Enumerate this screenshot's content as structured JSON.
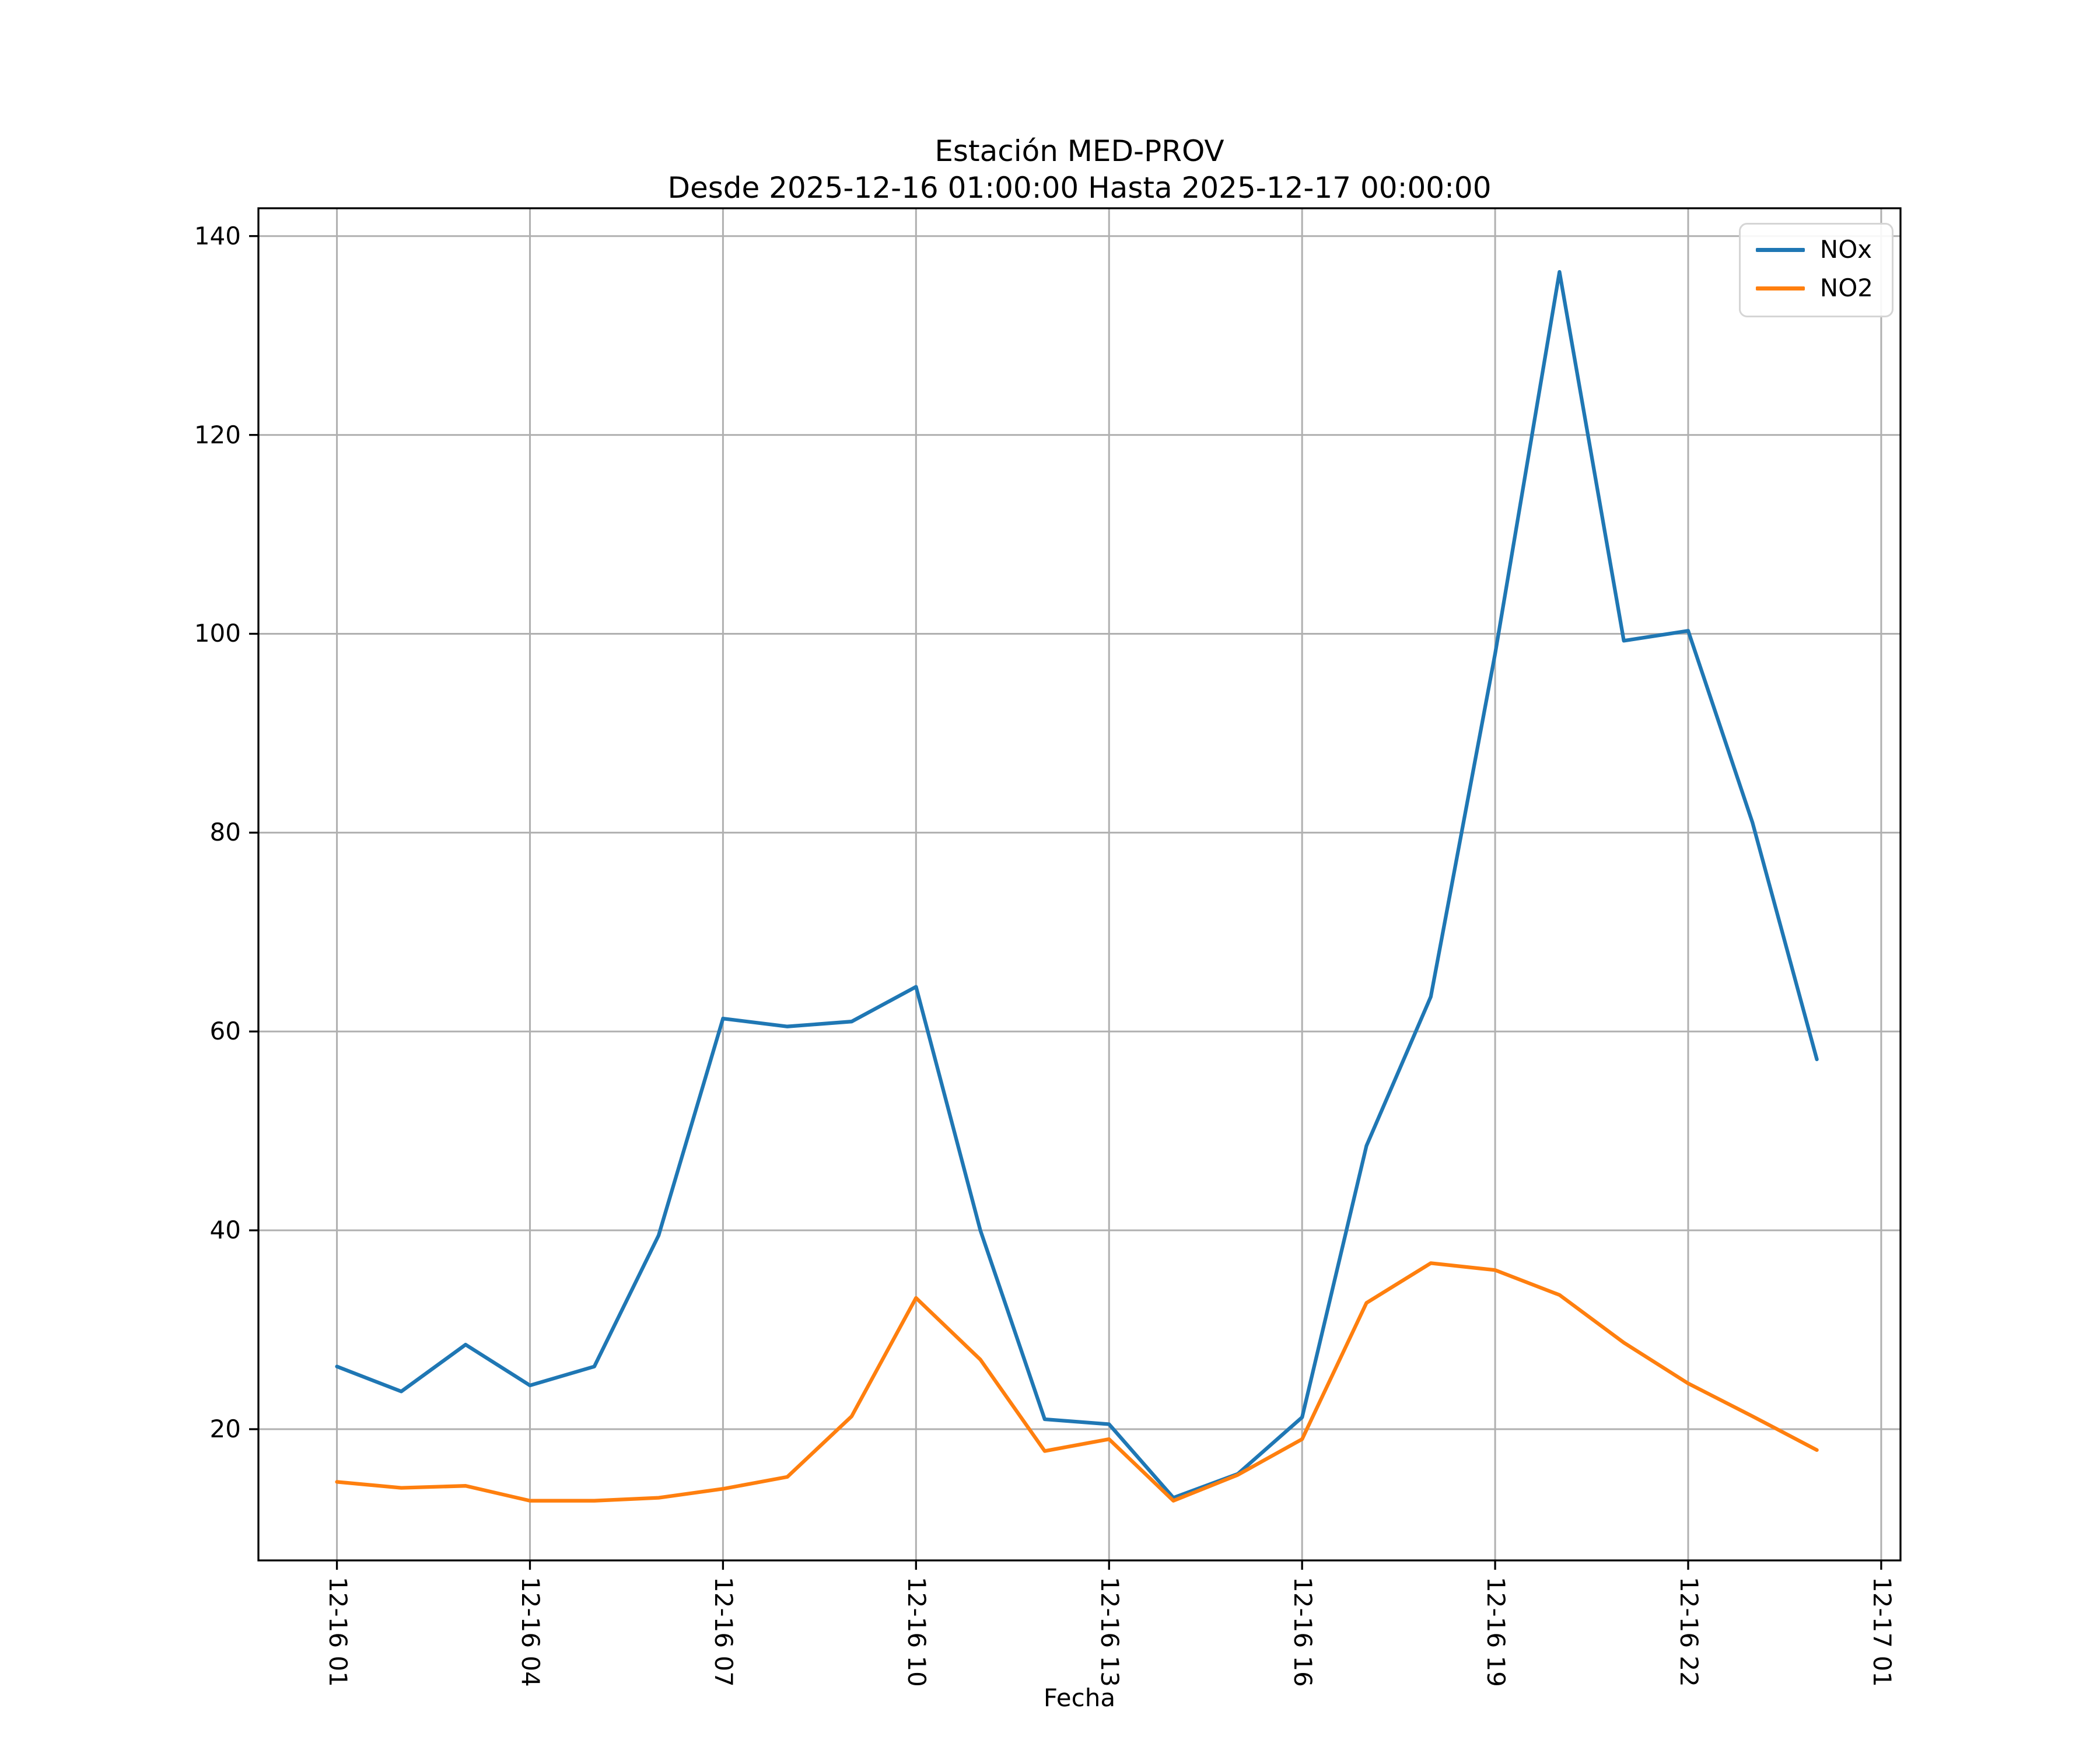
{
  "figure": {
    "title": "Estación MED-PROV",
    "subtitle": "Desde 2025-12-16 01:00:00 Hasta 2025-12-17 00:00:00",
    "xlabel": "Fecha"
  },
  "chart_data": {
    "type": "line",
    "title": "Estación MED-PROV",
    "subtitle": "Desde 2025-12-16 01:00:00 Hasta 2025-12-17 00:00:00",
    "xlabel": "Fecha",
    "ylabel": "",
    "grid": true,
    "legend_position": "upper right",
    "x_labels": [
      "2025-12-16 01:00",
      "2025-12-16 02:00",
      "2025-12-16 03:00",
      "2025-12-16 04:00",
      "2025-12-16 05:00",
      "2025-12-16 06:00",
      "2025-12-16 07:00",
      "2025-12-16 08:00",
      "2025-12-16 09:00",
      "2025-12-16 10:00",
      "2025-12-16 11:00",
      "2025-12-16 12:00",
      "2025-12-16 13:00",
      "2025-12-16 14:00",
      "2025-12-16 15:00",
      "2025-12-16 16:00",
      "2025-12-16 17:00",
      "2025-12-16 18:00",
      "2025-12-16 19:00",
      "2025-12-16 20:00",
      "2025-12-16 21:00",
      "2025-12-16 22:00",
      "2025-12-16 23:00",
      "2025-12-17 00:00"
    ],
    "series": [
      {
        "name": "NOx",
        "color": "#1f77b4",
        "values": [
          26.3,
          23.8,
          28.5,
          24.4,
          26.3,
          39.5,
          61.3,
          60.5,
          61.0,
          64.5,
          40.0,
          21.0,
          20.5,
          13.1,
          15.5,
          21.2,
          48.5,
          63.5,
          98.0,
          136.4,
          99.3,
          100.3,
          81.0,
          57.2
        ]
      },
      {
        "name": "NO2",
        "color": "#ff7f0e",
        "values": [
          14.7,
          14.1,
          14.3,
          12.8,
          12.8,
          13.1,
          14.0,
          15.2,
          21.3,
          33.2,
          27.0,
          17.8,
          19.0,
          12.8,
          15.4,
          19.0,
          32.7,
          36.7,
          36.0,
          33.5,
          28.7,
          24.6,
          21.3,
          17.9
        ]
      }
    ],
    "xticks": [
      {
        "pos": 0,
        "label": "12-16 01"
      },
      {
        "pos": 3,
        "label": "12-16 04"
      },
      {
        "pos": 6,
        "label": "12-16 07"
      },
      {
        "pos": 9,
        "label": "12-16 10"
      },
      {
        "pos": 12,
        "label": "12-16 13"
      },
      {
        "pos": 15,
        "label": "12-16 16"
      },
      {
        "pos": 18,
        "label": "12-16 19"
      },
      {
        "pos": 21,
        "label": "12-16 22"
      },
      {
        "pos": 24,
        "label": "12-17 01"
      }
    ],
    "yticks": [
      20,
      40,
      60,
      80,
      100,
      120,
      140
    ],
    "xlim_hours": [
      -1.22,
      24.3
    ],
    "ylim": [
      6.8,
      142.8
    ],
    "grid_color": "#b0b0b0",
    "spine_color": "#000000"
  }
}
